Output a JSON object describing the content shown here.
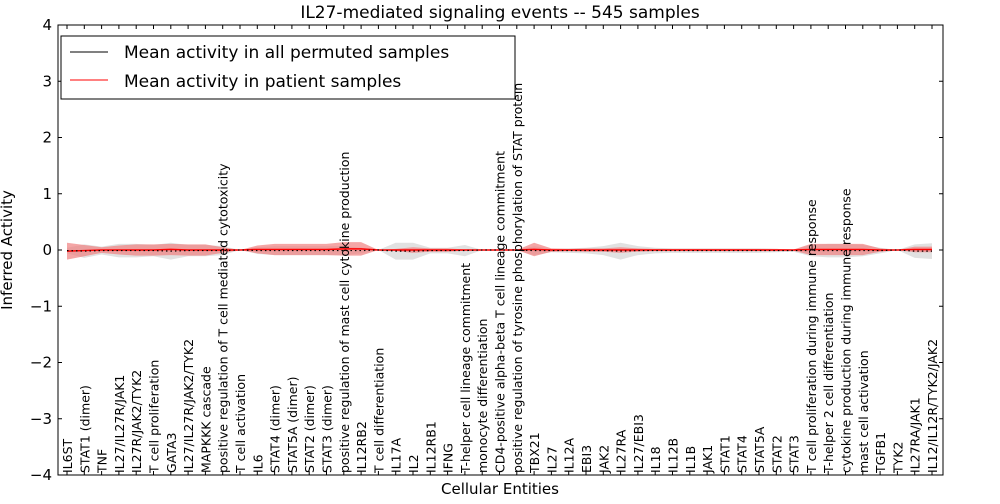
{
  "chart_data": {
    "type": "line",
    "title": "IL27-mediated signaling events -- 545 samples",
    "xlabel": "Cellular Entities",
    "ylabel": "Inferred Activity",
    "ylim": [
      -4,
      4
    ],
    "yticks": [
      -4,
      -3,
      -2,
      -1,
      0,
      1,
      2,
      3,
      4
    ],
    "ytick_labels": [
      "−4",
      "−3",
      "−2",
      "−1",
      "0",
      "1",
      "2",
      "3",
      "4"
    ],
    "legend_position": "top-left",
    "legend": [
      {
        "label": "Mean activity in all permuted samples",
        "color": "#000000"
      },
      {
        "label": "Mean activity in patient samples",
        "color": "#ff0000"
      }
    ],
    "colors": {
      "patient": "#ff0000",
      "patient_band": "#f08080",
      "permuted_band": "#c8c8c8"
    },
    "categories": [
      "IL6ST",
      "STAT1 (dimer)",
      "TNF",
      "IL27/IL27R/JAK1",
      "IL27R/JAK2/TYK2",
      "T cell proliferation",
      "GATA3",
      "IL27/IL27R/JAK2/TYK2",
      "MAPKKK cascade",
      "positive regulation of T cell mediated cytotoxicity",
      "T cell activation",
      "IL6",
      "STAT4 (dimer)",
      "STAT5A (dimer)",
      "STAT2 (dimer)",
      "STAT3 (dimer)",
      "positive regulation of mast cell cytokine production",
      "IL12RB2",
      "T cell differentiation",
      "IL17A",
      "IL2",
      "IL12RB1",
      "IFNG",
      "T-helper cell lineage commitment",
      "monocyte differentiation",
      "CD4-positive alpha-beta T cell lineage commitment",
      "positive regulation of tyrosine phosphorylation of STAT protein",
      "TBX21",
      "IL27",
      "IL12A",
      "EBI3",
      "JAK2",
      "IL27RA",
      "IL27/EBI3",
      "IL18",
      "IL12B",
      "IL1B",
      "JAK1",
      "STAT1",
      "STAT4",
      "STAT5A",
      "STAT2",
      "STAT3",
      "T cell proliferation during immune response",
      "T-helper 2 cell differentiation",
      "cytokine production during immune response",
      "mast cell activation",
      "TGFB1",
      "TYK2",
      "IL27RA/JAK1",
      "IL12/IL12R/TYK2/JAK2"
    ],
    "series": [
      {
        "name": "Mean activity in patient samples",
        "values": [
          -0.02,
          -0.01,
          0,
          0,
          0,
          0,
          0.01,
          0,
          0,
          0,
          0,
          0.01,
          0.01,
          0.01,
          0.01,
          0.01,
          0.02,
          0.02,
          0,
          0,
          0,
          0,
          0,
          0,
          0,
          0,
          0,
          0.01,
          0,
          0,
          0,
          0,
          0,
          0,
          0,
          0,
          0,
          0,
          0,
          0,
          0,
          0,
          0,
          0.01,
          0.01,
          0.01,
          0.01,
          0,
          0,
          0.01,
          0.01
        ],
        "band_halfwidth": [
          0.15,
          0.1,
          0.05,
          0.08,
          0.1,
          0.1,
          0.1,
          0.1,
          0.1,
          0.05,
          0,
          0.07,
          0.1,
          0.1,
          0.1,
          0.1,
          0.12,
          0.12,
          0,
          0.02,
          0.05,
          0.03,
          0.03,
          0.01,
          0,
          0,
          0,
          0.12,
          0.03,
          0.02,
          0.03,
          0.03,
          0.05,
          0.03,
          0.02,
          0.02,
          0.02,
          0.02,
          0.02,
          0.02,
          0.02,
          0.02,
          0.01,
          0.1,
          0.1,
          0.1,
          0.1,
          0.03,
          0,
          0.05,
          0.05
        ]
      },
      {
        "name": "Mean activity in all permuted samples",
        "values": [
          -0.01,
          -0.02,
          -0.01,
          -0.01,
          -0.01,
          -0.01,
          -0.02,
          -0.01,
          -0.01,
          -0.01,
          0,
          -0.01,
          -0.01,
          -0.01,
          -0.01,
          -0.01,
          -0.01,
          -0.01,
          0,
          -0.02,
          -0.02,
          -0.01,
          -0.01,
          -0.01,
          0,
          0,
          0,
          -0.01,
          -0.01,
          -0.01,
          -0.01,
          -0.01,
          -0.02,
          -0.01,
          -0.01,
          -0.01,
          -0.01,
          -0.01,
          -0.01,
          -0.01,
          -0.01,
          -0.01,
          -0.01,
          -0.01,
          -0.01,
          -0.01,
          -0.01,
          -0.01,
          0,
          -0.02,
          -0.02
        ],
        "band_halfwidth": [
          0.05,
          0.12,
          0.07,
          0.12,
          0.12,
          0.1,
          0.15,
          0.1,
          0.1,
          0.08,
          0,
          0.06,
          0.08,
          0.08,
          0.08,
          0.08,
          0.08,
          0.05,
          0,
          0.15,
          0.15,
          0.05,
          0.05,
          0.1,
          0,
          0,
          0,
          0.08,
          0.03,
          0.04,
          0.05,
          0.08,
          0.15,
          0.08,
          0.05,
          0.04,
          0.04,
          0.04,
          0.04,
          0.04,
          0.04,
          0.03,
          0.02,
          0.1,
          0.12,
          0.12,
          0.1,
          0.05,
          0,
          0.12,
          0.14
        ]
      }
    ]
  }
}
